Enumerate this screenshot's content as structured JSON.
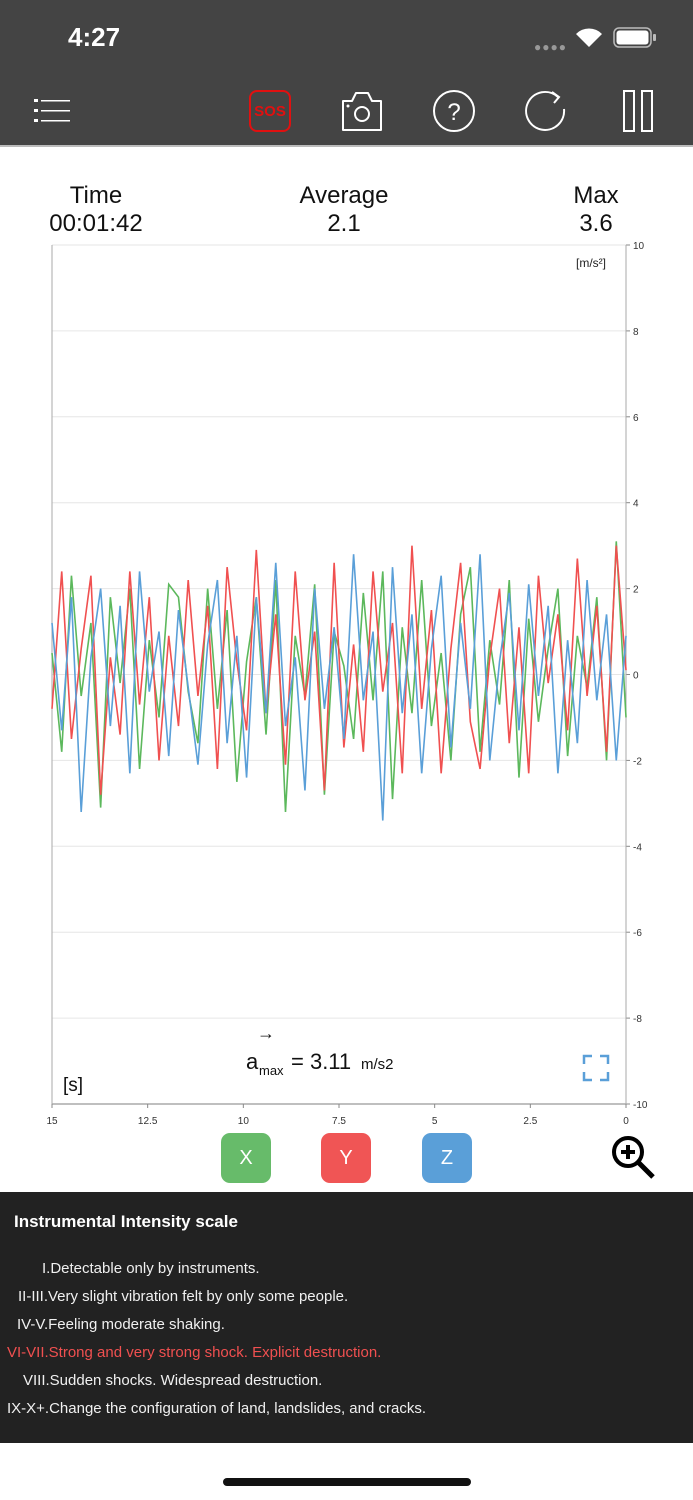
{
  "status_bar": {
    "time": "4:27"
  },
  "toolbar": {
    "sos_label": "SOS"
  },
  "stats": {
    "time_label": "Time",
    "time_value": "00:01:42",
    "avg_label": "Average",
    "avg_value": "2.1",
    "max_label": "Max",
    "max_value": "3.6"
  },
  "chart_data": {
    "type": "line",
    "unit_label": "[m/s²]",
    "xlabel": "[s]",
    "xlim": [
      15,
      0
    ],
    "ylim": [
      -10,
      10
    ],
    "x_ticks": [
      "15",
      "12.5",
      "10",
      "7.5",
      "5",
      "2.5",
      "0"
    ],
    "y_ticks": [
      "10",
      "8",
      "6",
      "4",
      "2",
      "0",
      "-2",
      "-4",
      "-6",
      "-8",
      "-10"
    ],
    "annotation": {
      "symbol": "a",
      "sub": "max",
      "value": "= 3.11",
      "unit": "m/s2"
    },
    "series": [
      {
        "name": "X",
        "color": "#5cb85c",
        "values": [
          0.5,
          -1.8,
          2.3,
          -0.5,
          1.2,
          -3.1,
          1.8,
          -0.2,
          2.0,
          -2.2,
          0.8,
          -1.0,
          2.1,
          1.8,
          -0.4,
          -1.6,
          2.0,
          -0.8,
          1.5,
          -2.5,
          0.3,
          1.8,
          -1.4,
          2.2,
          -3.2,
          0.9,
          -0.5,
          2.1,
          -2.8,
          1.0,
          0.2,
          -1.5,
          1.9,
          -0.6,
          2.4,
          -2.9,
          1.1,
          -0.9,
          2.2,
          -1.2,
          0.5,
          -2.0,
          1.4,
          2.5,
          -1.8,
          0.8,
          -0.7,
          2.2,
          -2.4,
          1.3,
          -1.1,
          0.6,
          2.0,
          -1.9,
          0.9,
          -0.3,
          1.8,
          -2.0,
          3.1,
          -1.0
        ]
      },
      {
        "name": "Y",
        "color": "#f05050",
        "values": [
          -0.8,
          2.4,
          -1.5,
          0.6,
          2.3,
          -2.8,
          0.4,
          -1.4,
          2.4,
          -0.7,
          1.8,
          -2.0,
          0.9,
          -1.2,
          2.2,
          -0.5,
          1.6,
          -2.2,
          2.5,
          0.3,
          -1.3,
          2.9,
          -0.9,
          1.4,
          -2.1,
          2.4,
          -0.6,
          1.0,
          -2.7,
          2.6,
          -1.7,
          0.7,
          -1.8,
          2.4,
          -0.4,
          1.2,
          -2.3,
          3.0,
          -0.8,
          1.5,
          -2.3,
          0.6,
          2.6,
          -1.1,
          -2.2,
          0.4,
          2.0,
          -1.6,
          1.1,
          -2.3,
          2.3,
          -0.2,
          1.4,
          -1.3,
          2.7,
          -0.5,
          1.6,
          -1.8,
          3.0,
          0.1
        ]
      },
      {
        "name": "Z",
        "color": "#5a9fd8",
        "values": [
          1.2,
          -1.3,
          1.8,
          -3.2,
          0.4,
          2.0,
          -1.2,
          1.6,
          -2.3,
          2.4,
          -0.4,
          1.0,
          -1.9,
          1.5,
          -0.3,
          -2.1,
          0.7,
          2.2,
          -1.6,
          0.9,
          -2.4,
          1.8,
          -0.9,
          2.6,
          -1.2,
          0.4,
          -2.7,
          2.0,
          -0.8,
          1.1,
          -1.5,
          2.8,
          -0.6,
          1.0,
          -3.4,
          2.5,
          -0.9,
          1.4,
          -2.3,
          0.6,
          2.3,
          -1.7,
          1.2,
          -0.8,
          2.8,
          -2.0,
          0.3,
          1.9,
          -1.3,
          2.1,
          -0.5,
          1.6,
          -2.3,
          0.8,
          -1.6,
          2.2,
          -0.6,
          1.4,
          -2.0,
          0.9
        ]
      }
    ]
  },
  "buttons": {
    "x": "X",
    "y": "Y",
    "z": "Z"
  },
  "intensity": {
    "title": "Instrumental Intensity scale",
    "highlight_color": "#f05050",
    "levels": [
      {
        "text": "I.Detectable only by instruments.",
        "highlight": false
      },
      {
        "text": "II-III.Very slight vibration felt by only some people.",
        "highlight": false
      },
      {
        "text": "IV-V.Feeling moderate shaking.",
        "highlight": false
      },
      {
        "text": "VI-VII.Strong and very strong shock. Explicit destruction.",
        "highlight": true
      },
      {
        "text": "VIII.Sudden shocks. Widespread destruction.",
        "highlight": false
      },
      {
        "text": "IX-X+.Change the configuration of land, landslides, and cracks.",
        "highlight": false
      }
    ]
  }
}
